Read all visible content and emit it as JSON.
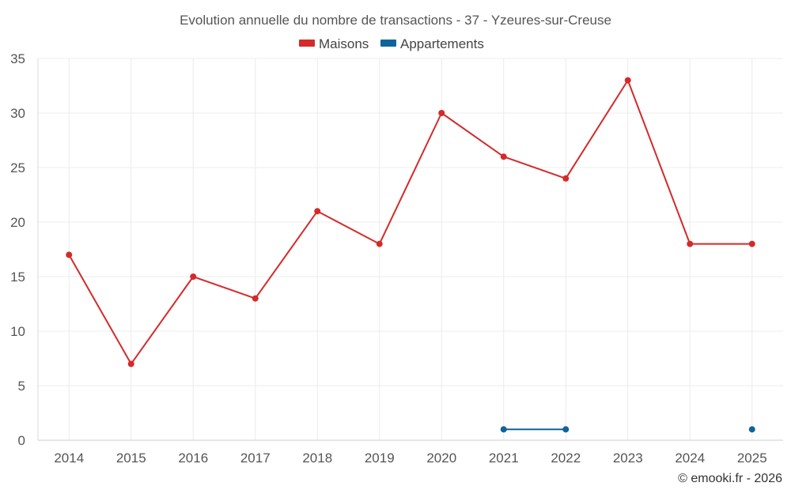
{
  "chart_data": {
    "type": "line",
    "title": "Evolution annuelle du nombre de transactions - 37 - Yzeures-sur-Creuse",
    "categories": [
      "2014",
      "2015",
      "2016",
      "2017",
      "2018",
      "2019",
      "2020",
      "2021",
      "2022",
      "2023",
      "2024",
      "2025"
    ],
    "series": [
      {
        "name": "Maisons",
        "color": "#d42a2a",
        "values": [
          17,
          7,
          15,
          13,
          21,
          18,
          30,
          26,
          24,
          33,
          18,
          18
        ]
      },
      {
        "name": "Appartements",
        "color": "#0f649a",
        "values": [
          null,
          null,
          null,
          null,
          null,
          null,
          null,
          1,
          1,
          null,
          null,
          1
        ]
      }
    ],
    "ylim": [
      0,
      35
    ],
    "yticks": [
      0,
      5,
      10,
      15,
      20,
      25,
      30,
      35
    ],
    "xlabel": "",
    "ylabel": "",
    "grid": true,
    "legend_position": "top-center",
    "credit": "© emooki.fr - 2026"
  }
}
